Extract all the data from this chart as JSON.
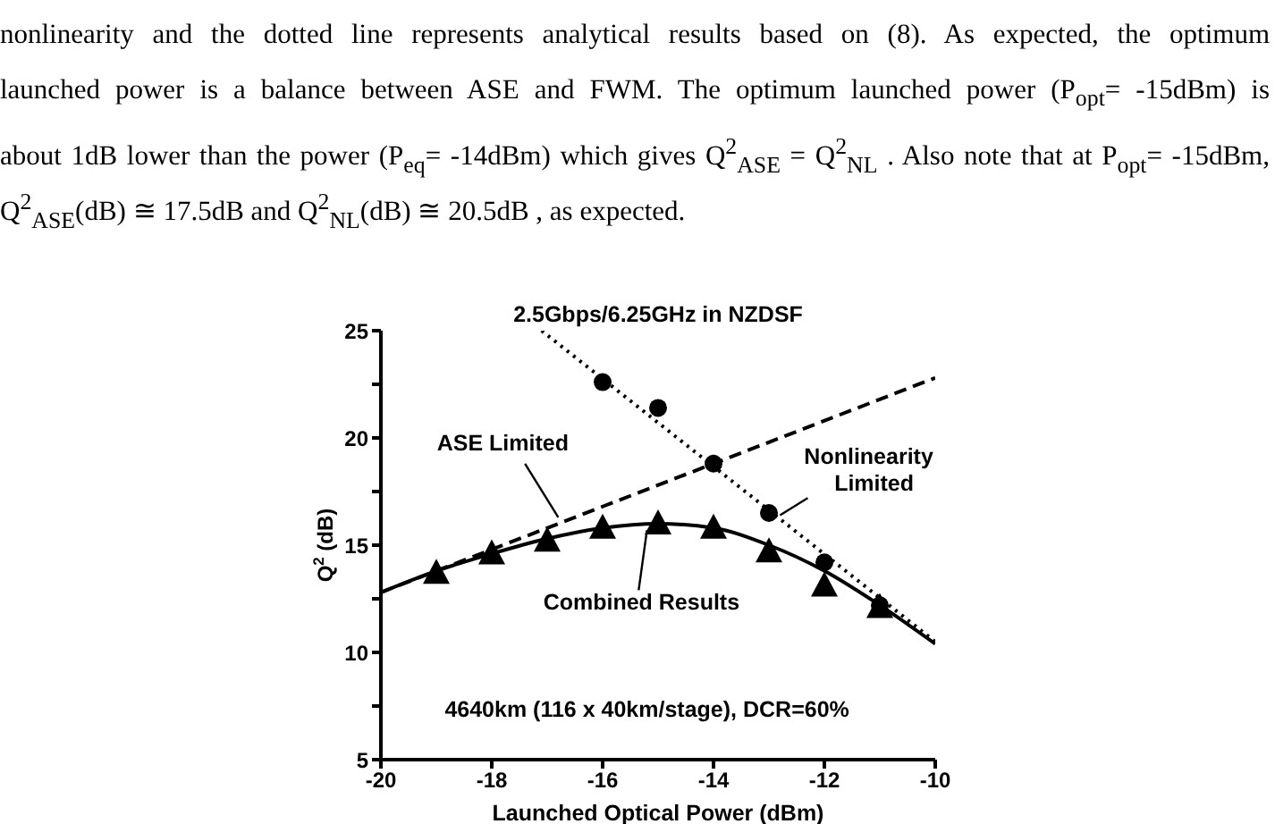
{
  "chart_data": {
    "type": "line",
    "title": "2.5Gbps/6.25GHz in NZDSF",
    "xlabel": "Launched Optical Power (dBm)",
    "ylabel": "Q$^{2}$ (dB)",
    "xlim": [
      -20,
      -10
    ],
    "ylim": [
      5,
      25
    ],
    "xticks": [
      -20,
      -18,
      -16,
      -14,
      -12,
      -10
    ],
    "yticks": [
      5,
      {
        "value": 7.5,
        "label": null
      },
      10,
      {
        "value": 12.5,
        "label": null
      },
      15,
      {
        "value": 17.5,
        "label": null
      },
      20,
      {
        "value": 22.5,
        "label": null
      },
      25
    ],
    "series": [
      {
        "line_style": "dashed",
        "color": "#000000",
        "x": [
          -20,
          -10
        ],
        "values": [
          12.8,
          22.8
        ]
      },
      {
        "line_style": "dotted",
        "color": "#000000",
        "x": [
          -17.1,
          -10
        ],
        "values": [
          25,
          10.5
        ]
      },
      {
        "line_style": "solid",
        "color": "#000000",
        "x": [
          -20,
          -19,
          -18,
          -17,
          -16,
          -15,
          -14,
          -13,
          -12,
          -11,
          -10
        ],
        "values": [
          12.8,
          13.8,
          14.6,
          15.3,
          15.8,
          16.0,
          15.8,
          15.0,
          13.8,
          12.2,
          10.4
        ]
      },
      {
        "type": "scatter",
        "marker": "triangle",
        "color": "#000000",
        "x": [
          -19,
          -18,
          -17,
          -16,
          -15,
          -14,
          -13,
          -12,
          -11
        ],
        "values": [
          13.7,
          14.6,
          15.2,
          15.8,
          16.0,
          15.8,
          14.7,
          13.1,
          12.1
        ]
      },
      {
        "type": "scatter",
        "marker": "circle",
        "color": "#000000",
        "x": [
          -16,
          -15,
          -14,
          -13,
          -12,
          -11
        ],
        "values": [
          22.6,
          21.4,
          18.8,
          16.5,
          14.2,
          12.2
        ]
      }
    ],
    "annotations": [
      "nonlinearity and the dotted line represents analytical results based on (8).  As expected, the optimum",
      "launched power is a balance between ASE and FWM.  The optimum launched power (P$_{opt}$= -15dBm) is",
      "about 1dB lower than the power (P$_{eq}$= -14dBm) which gives  Q$^{2}$$_{ASE}$ = Q$^{2}$$_{NL}$ .   Also note that at P$_{opt}$= -15dBm,",
      "Q$^{2}$$_{ASE}$(dB) ≅ 17.5dB  and  Q$^{2}$$_{NL}$(dB) ≅ 20.5dB  , as expected.",
      "ASE Limited",
      "Nonlinearity Limited",
      "Combined Results",
      "4640km (116 x 40km/stage), DCR=60%"
    ]
  }
}
